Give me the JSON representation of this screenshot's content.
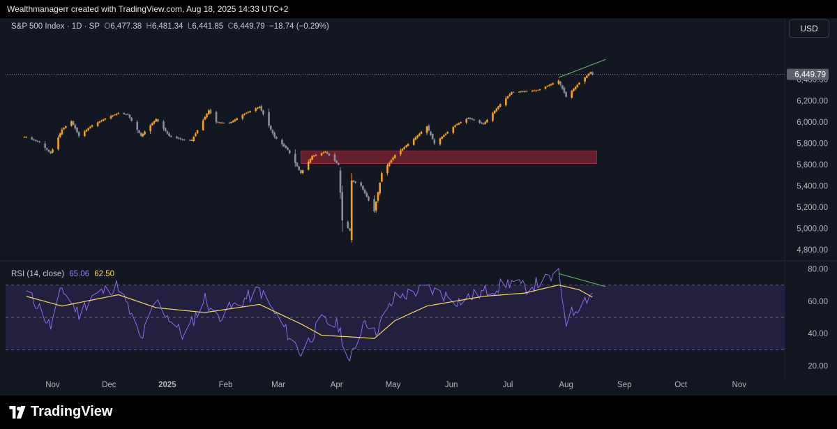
{
  "header": {
    "attribution": "Wealthmanagerr created with TradingView.com, Aug 18, 2025 14:33 UTC+2"
  },
  "legend": {
    "symbol": "S&P 500 Index · 1D · SP",
    "open_label": "O",
    "open": "6,477.38",
    "high_label": "H",
    "high": "6,481.34",
    "low_label": "L",
    "low": "6,441.85",
    "close_label": "C",
    "close": "6,449.79",
    "change": "−18.74 (−0.29%)"
  },
  "currency_button": "USD",
  "last_price_badge": "6,449.79",
  "rsi_legend": {
    "label": "RSI (14, close)",
    "rsi_value": "65.06",
    "ma_value": "62.50"
  },
  "footer": {
    "brand": "TradingView"
  },
  "colors": {
    "background": "#131722",
    "bull_candle": "#f7a21b",
    "bear_candle": "#8c8f99",
    "zone_fill": "#7a2232",
    "rsi_line": "#8e6ee8",
    "rsi_ma": "#f6dc5e",
    "rsi_band": "#221f3f",
    "trend_line": "#5fbf6a"
  },
  "chart_data": [
    {
      "type": "candlestick",
      "title": "S&P 500 Index",
      "x_axis_labels": [
        "Nov",
        "Dec",
        "2025",
        "Feb",
        "Mar",
        "Apr",
        "May",
        "Jun",
        "Jul",
        "Aug",
        "Sep",
        "Oct",
        "Nov"
      ],
      "y_ticks": [
        "6,400.00",
        "6,200.00",
        "6,000.00",
        "5,800.00",
        "5,600.00",
        "5,400.00",
        "5,200.00",
        "5,000.00",
        "4,800.00"
      ],
      "ylim": [
        4760,
        6900
      ],
      "series": [
        {
          "name": "price_path",
          "points": [
            [
              "2024-10-18",
              5860
            ],
            [
              "2024-10-25",
              5810
            ],
            [
              "2024-10-31",
              5705
            ],
            [
              "2024-11-06",
              5930
            ],
            [
              "2024-11-11",
              6010
            ],
            [
              "2024-11-15",
              5870
            ],
            [
              "2024-11-22",
              5970
            ],
            [
              "2024-11-29",
              6035
            ],
            [
              "2024-12-06",
              6085
            ],
            [
              "2024-12-11",
              6070
            ],
            [
              "2024-12-18",
              5870
            ],
            [
              "2024-12-26",
              6030
            ],
            [
              "2025-01-02",
              5870
            ],
            [
              "2025-01-10",
              5830
            ],
            [
              "2025-01-14",
              5830
            ],
            [
              "2025-01-23",
              6110
            ],
            [
              "2025-01-27",
              6000
            ],
            [
              "2025-02-03",
              5990
            ],
            [
              "2025-02-10",
              6070
            ],
            [
              "2025-02-19",
              6145
            ],
            [
              "2025-02-27",
              5860
            ],
            [
              "2025-03-06",
              5740
            ],
            [
              "2025-03-13",
              5520
            ],
            [
              "2025-03-19",
              5680
            ],
            [
              "2025-03-26",
              5720
            ],
            [
              "2025-04-02",
              5600
            ],
            [
              "2025-04-04",
              5075
            ],
            [
              "2025-04-08",
              4980
            ],
            [
              "2025-04-09",
              5450
            ],
            [
              "2025-04-14",
              5400
            ],
            [
              "2025-04-21",
              5160
            ],
            [
              "2025-04-25",
              5520
            ],
            [
              "2025-05-02",
              5690
            ],
            [
              "2025-05-12",
              5840
            ],
            [
              "2025-05-19",
              5960
            ],
            [
              "2025-05-23",
              5800
            ],
            [
              "2025-06-03",
              5970
            ],
            [
              "2025-06-10",
              6040
            ],
            [
              "2025-06-18",
              5980
            ],
            [
              "2025-06-27",
              6170
            ],
            [
              "2025-07-03",
              6280
            ],
            [
              "2025-07-17",
              6300
            ],
            [
              "2025-07-28",
              6390
            ],
            [
              "2025-08-01",
              6240
            ],
            [
              "2025-08-08",
              6370
            ],
            [
              "2025-08-14",
              6470
            ],
            [
              "2025-08-15",
              6449.79
            ]
          ]
        }
      ],
      "zones": [
        {
          "x": [
            "2025-03-13",
            "2025-08-15"
          ],
          "y": [
            5610,
            5730
          ]
        }
      ],
      "trend_line": {
        "x": [
          "2025-07-28",
          "2025-08-22"
        ],
        "y": [
          6420,
          6590
        ]
      },
      "last_price": 6449.79
    },
    {
      "type": "line",
      "title": "RSI (14, close)",
      "y_ticks": [
        "80.00",
        "60.00",
        "40.00",
        "20.00"
      ],
      "ylim": [
        16,
        84
      ],
      "reference_lines": [
        70,
        50,
        30
      ],
      "series": [
        {
          "name": "RSI (14, close)",
          "points": [
            [
              "2024-10-18",
              65
            ],
            [
              "2024-10-24",
              58
            ],
            [
              "2024-10-31",
              44
            ],
            [
              "2024-11-06",
              68
            ],
            [
              "2024-11-15",
              52
            ],
            [
              "2024-11-22",
              63
            ],
            [
              "2024-12-06",
              70
            ],
            [
              "2024-12-18",
              36
            ],
            [
              "2024-12-26",
              60
            ],
            [
              "2025-01-10",
              38
            ],
            [
              "2025-01-21",
              62
            ],
            [
              "2025-01-27",
              50
            ],
            [
              "2025-02-19",
              67
            ],
            [
              "2025-03-06",
              40
            ],
            [
              "2025-03-13",
              28
            ],
            [
              "2025-03-24",
              48
            ],
            [
              "2025-04-02",
              45
            ],
            [
              "2025-04-08",
              22
            ],
            [
              "2025-04-16",
              50
            ],
            [
              "2025-04-21",
              40
            ],
            [
              "2025-05-02",
              62
            ],
            [
              "2025-05-19",
              68
            ],
            [
              "2025-06-05",
              60
            ],
            [
              "2025-07-03",
              72
            ],
            [
              "2025-07-10",
              68
            ],
            [
              "2025-07-28",
              76
            ],
            [
              "2025-08-01",
              48
            ],
            [
              "2025-08-08",
              58
            ],
            [
              "2025-08-15",
              65.06
            ]
          ]
        },
        {
          "name": "MA",
          "points": [
            [
              "2024-10-18",
              63
            ],
            [
              "2024-11-06",
              57
            ],
            [
              "2024-12-06",
              64
            ],
            [
              "2024-12-26",
              56
            ],
            [
              "2025-01-21",
              53
            ],
            [
              "2025-02-19",
              58
            ],
            [
              "2025-03-13",
              46
            ],
            [
              "2025-03-24",
              39
            ],
            [
              "2025-04-08",
              38
            ],
            [
              "2025-04-21",
              37
            ],
            [
              "2025-05-02",
              48
            ],
            [
              "2025-05-19",
              57
            ],
            [
              "2025-06-18",
              63
            ],
            [
              "2025-07-10",
              65
            ],
            [
              "2025-07-28",
              70
            ],
            [
              "2025-08-08",
              67
            ],
            [
              "2025-08-15",
              62.5
            ]
          ]
        }
      ],
      "trend_line": {
        "x": [
          "2025-07-28",
          "2025-08-22"
        ],
        "y": [
          77,
          69
        ]
      }
    }
  ]
}
